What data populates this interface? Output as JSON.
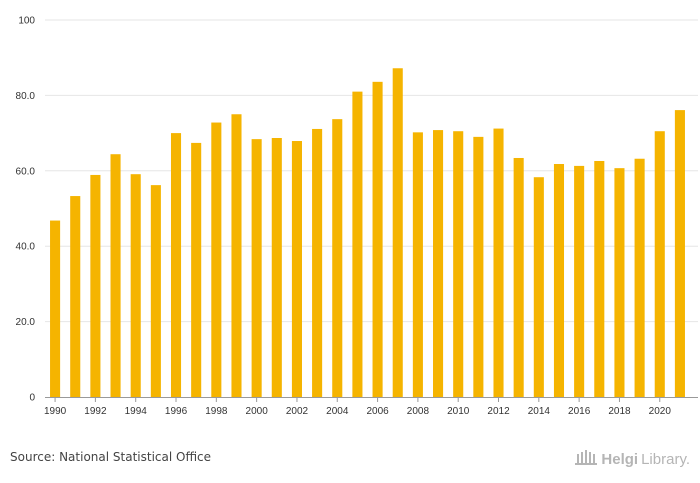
{
  "colors": {
    "bar": "#F5B400",
    "grid": "#e6e6e6",
    "axis": "#999999",
    "text": "#333333"
  },
  "chart_data": {
    "type": "bar",
    "categories": [
      "1990",
      "1991",
      "1992",
      "1993",
      "1994",
      "1995",
      "1996",
      "1997",
      "1998",
      "1999",
      "2000",
      "2001",
      "2002",
      "2003",
      "2004",
      "2005",
      "2006",
      "2007",
      "2008",
      "2009",
      "2010",
      "2011",
      "2012",
      "2013",
      "2014",
      "2015",
      "2016",
      "2017",
      "2018",
      "2019",
      "2020",
      "2021"
    ],
    "values": [
      46.8,
      53.3,
      58.9,
      64.4,
      59.1,
      56.2,
      70.0,
      67.4,
      72.8,
      75.0,
      68.4,
      68.7,
      67.9,
      71.1,
      73.7,
      81.0,
      83.6,
      87.2,
      70.2,
      70.8,
      70.5,
      69.0,
      71.2,
      63.4,
      58.3,
      61.8,
      61.3,
      62.6,
      60.7,
      63.2,
      70.5,
      76.1
    ],
    "x_tick_labels": [
      "1990",
      "1992",
      "1994",
      "1996",
      "1998",
      "2000",
      "2002",
      "2004",
      "2006",
      "2008",
      "2010",
      "2012",
      "2014",
      "2016",
      "2018",
      "2020"
    ],
    "y_tick_labels": [
      "0",
      "20.0",
      "40.0",
      "60.0",
      "80.0",
      "100"
    ],
    "y_ticks": [
      0,
      20,
      40,
      60,
      80,
      100
    ],
    "ylim": [
      0,
      100
    ],
    "grid": true,
    "title": "",
    "xlabel": "",
    "ylabel": ""
  },
  "footer": {
    "source": "Source: National Statistical Office",
    "logo_icon": "library-building-icon",
    "logo_part1": "Helgi",
    "logo_part2": "Library."
  }
}
